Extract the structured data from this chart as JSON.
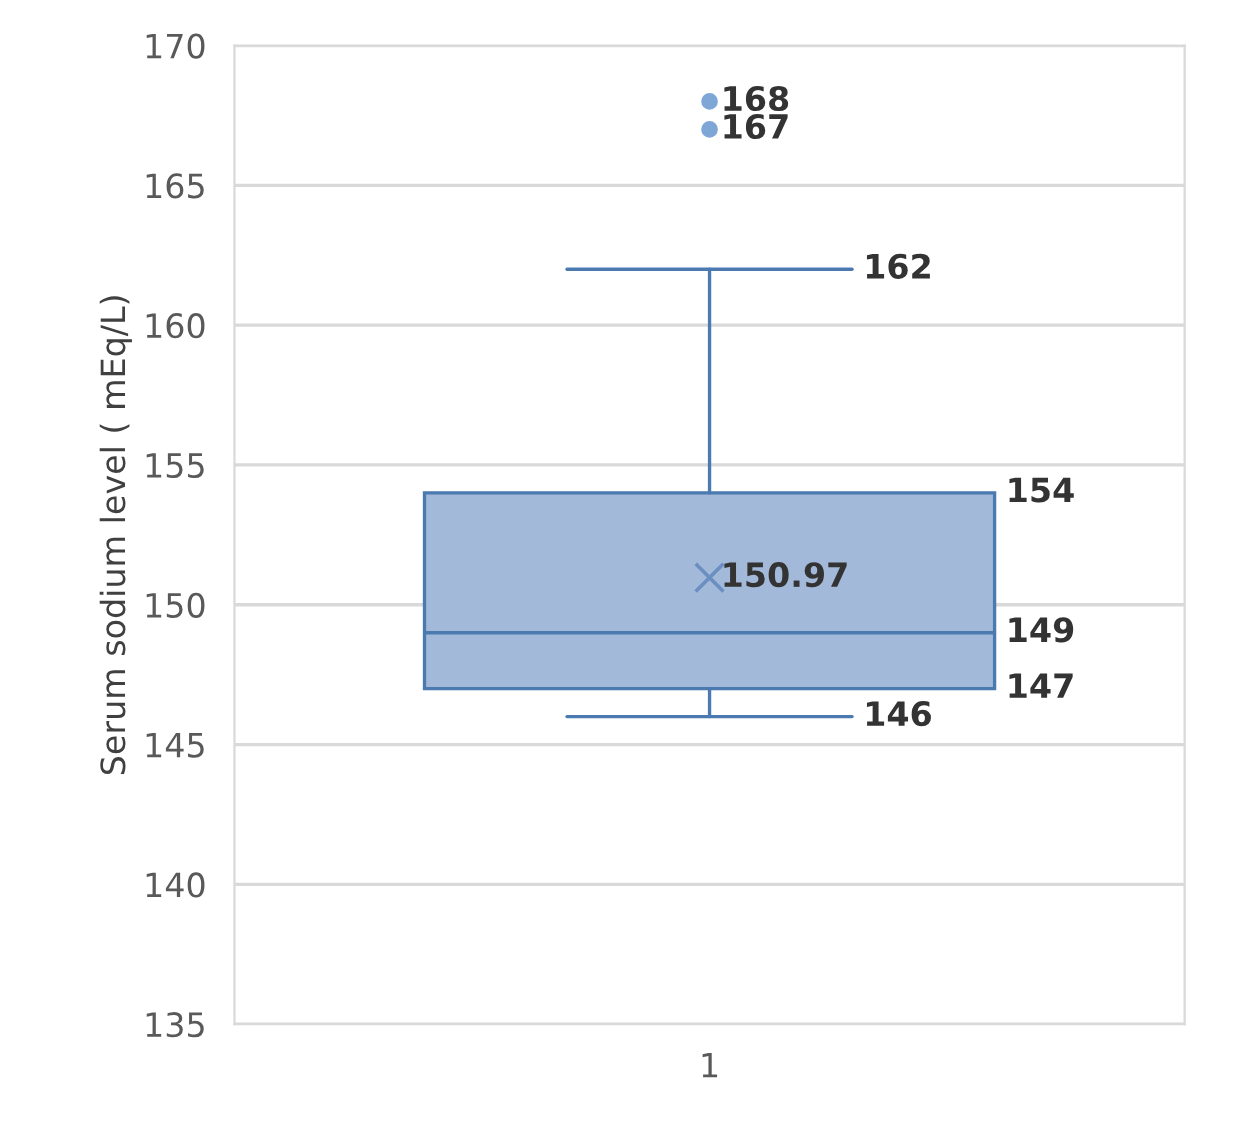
{
  "chart_data": {
    "type": "box",
    "ylabel": "Serum sodium level ( mEq/L)",
    "categories": [
      "1"
    ],
    "boxes": [
      {
        "low": 146,
        "q1": 147,
        "median": 149,
        "q3": 154,
        "high": 162,
        "mean": 150.97,
        "outliers": [
          167,
          168
        ]
      }
    ],
    "color": "#a3b9d9",
    "ylim": [
      135,
      170
    ],
    "yticks": [
      135,
      140,
      145,
      150,
      155,
      160,
      165,
      170
    ],
    "grid": "y",
    "legend": false,
    "annotations": [
      "146",
      "147",
      "149",
      "154",
      "162",
      "150.97",
      "167",
      "168"
    ]
  }
}
